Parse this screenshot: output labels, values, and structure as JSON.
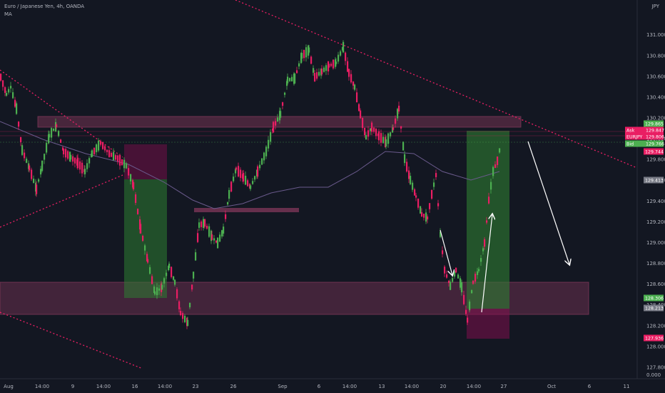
{
  "legend": {
    "symbol_line": "Euro / Japanese Yen, 4h, OANDA",
    "indicator": "MA"
  },
  "currency": "JPY",
  "colors": {
    "background": "#131722",
    "up": "#4caf50",
    "down": "#e91e63",
    "zone": "#8a3a5e",
    "long_profit": "#2e7d32",
    "long_stop": "#880e4f",
    "trendline": "#e91e63",
    "arrow": "#ffffff",
    "ma": "#6a5a8c"
  },
  "chart_data": {
    "type": "candlestick",
    "title": "Euro / Japanese Yen, 4h, OANDA",
    "ylim": [
      127.72,
      131.1
    ],
    "y_ticks": [
      "127.800",
      "128.000",
      "128.200",
      "128.400",
      "128.600",
      "128.800",
      "129.000",
      "129.200",
      "129.400",
      "129.600",
      "129.800",
      "130.000",
      "130.200",
      "130.400",
      "130.600",
      "130.800",
      "131.000"
    ],
    "x_ticks": [
      "Aug",
      "14:00",
      "9",
      "14:00",
      "16",
      "14:00",
      "23",
      "26",
      "Sep",
      "6",
      "14:00",
      "13",
      "14:00",
      "20",
      "14:00",
      "27",
      "Oct",
      "6",
      "11"
    ],
    "price_labels": [
      {
        "text": "129.865",
        "price": 129.865,
        "color": "#4caf50"
      },
      {
        "text": "Ask",
        "price": 129.847,
        "color": "#e91e63",
        "value": "129.847"
      },
      {
        "text": "EURJPY",
        "price": 129.806,
        "color": "#e91e63",
        "value": "129.806"
      },
      {
        "text": "Bid",
        "price": 129.766,
        "color": "#4caf50",
        "value": "129.766"
      },
      {
        "text": "129.744",
        "price": 129.744,
        "color": "#e91e63"
      },
      {
        "text": "129.413",
        "price": 129.413,
        "color": "#787b86"
      },
      {
        "text": "128.306",
        "price": 128.306,
        "color": "#4caf50"
      },
      {
        "text": "128.213",
        "price": 128.213,
        "color": "#787b86"
      },
      {
        "text": "127.936",
        "price": 127.936,
        "color": "#e91e63"
      }
    ],
    "corner_value": "0.000",
    "zones": [
      {
        "name": "upper-resistance",
        "from": 129.85,
        "to": 130.02
      },
      {
        "name": "mid-level",
        "from": 129.12,
        "to": 129.165
      },
      {
        "name": "lower-support",
        "from": 128.24,
        "to": 128.56
      }
    ],
    "positions": [
      {
        "name": "long-1",
        "entry": 129.413,
        "target": 129.8,
        "stop": 128.3
      },
      {
        "name": "long-2",
        "entry": 128.213,
        "target": 128.306,
        "stop": 127.936
      }
    ]
  }
}
